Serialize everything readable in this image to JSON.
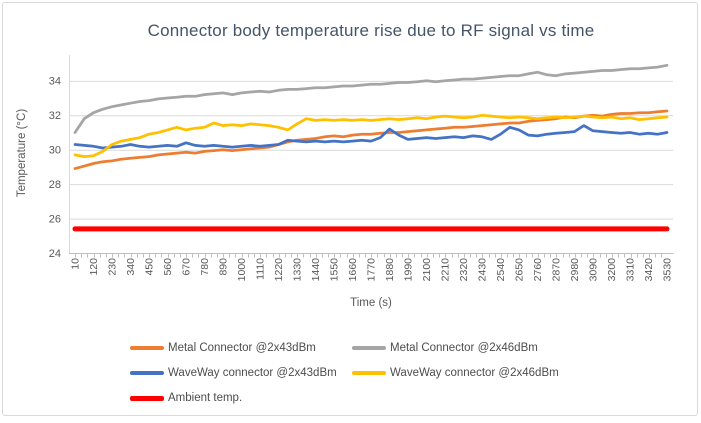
{
  "chart_data": {
    "type": "line",
    "title": "Connector body temperature rise due to RF signal vs time",
    "xlabel": "Time (s)",
    "ylabel": "Temperature (°C)",
    "xlim": [
      10,
      3530
    ],
    "ylim": [
      24,
      35.5
    ],
    "y_ticks": [
      24,
      26,
      28,
      30,
      32,
      34
    ],
    "x_tick_labels": [
      10,
      120,
      230,
      340,
      450,
      560,
      670,
      780,
      890,
      1000,
      1110,
      1220,
      1330,
      1440,
      1550,
      1660,
      1770,
      1880,
      1990,
      2100,
      2210,
      2320,
      2430,
      2540,
      2650,
      2760,
      2870,
      2980,
      3090,
      3200,
      3310,
      3420,
      3530
    ],
    "x_minor_tick_step": 36.7,
    "grid": true,
    "legend_position": "bottom",
    "colors": {
      "gridline": "#D9D9D9",
      "axis": "#BFBFBF",
      "tick_text": "#595959",
      "title_text": "#44546A"
    },
    "x": [
      10,
      65,
      120,
      175,
      230,
      285,
      340,
      395,
      450,
      505,
      560,
      615,
      670,
      725,
      780,
      835,
      890,
      945,
      1000,
      1055,
      1110,
      1165,
      1220,
      1275,
      1330,
      1385,
      1440,
      1495,
      1550,
      1605,
      1660,
      1715,
      1770,
      1825,
      1880,
      1935,
      1990,
      2045,
      2100,
      2155,
      2210,
      2265,
      2320,
      2375,
      2430,
      2485,
      2540,
      2595,
      2650,
      2705,
      2760,
      2815,
      2870,
      2925,
      2980,
      3035,
      3090,
      3145,
      3200,
      3255,
      3310,
      3365,
      3420,
      3475,
      3530
    ],
    "series": [
      {
        "name": "Metal Connector @2x43dBm",
        "color": "#ED7D31",
        "line_width": 2.75,
        "values": [
          28.9,
          29.05,
          29.2,
          29.3,
          29.35,
          29.45,
          29.5,
          29.55,
          29.6,
          29.7,
          29.75,
          29.8,
          29.85,
          29.8,
          29.9,
          29.95,
          30.0,
          29.95,
          30.0,
          30.05,
          30.1,
          30.15,
          30.3,
          30.45,
          30.55,
          30.6,
          30.65,
          30.75,
          30.8,
          30.75,
          30.85,
          30.9,
          30.9,
          30.95,
          31.0,
          31.0,
          31.05,
          31.1,
          31.15,
          31.2,
          31.25,
          31.3,
          31.3,
          31.35,
          31.4,
          31.45,
          31.5,
          31.55,
          31.55,
          31.65,
          31.7,
          31.75,
          31.8,
          31.9,
          31.85,
          31.95,
          32.0,
          31.95,
          32.05,
          32.1,
          32.1,
          32.15,
          32.15,
          32.2,
          32.25
        ]
      },
      {
        "name": "Metal Connector @2x46dBm",
        "color": "#A5A5A5",
        "line_width": 2.75,
        "values": [
          31.0,
          31.8,
          32.15,
          32.35,
          32.5,
          32.6,
          32.7,
          32.8,
          32.85,
          32.95,
          33.0,
          33.05,
          33.1,
          33.1,
          33.2,
          33.25,
          33.3,
          33.2,
          33.3,
          33.35,
          33.4,
          33.35,
          33.45,
          33.5,
          33.5,
          33.55,
          33.6,
          33.6,
          33.65,
          33.7,
          33.7,
          33.75,
          33.8,
          33.8,
          33.85,
          33.9,
          33.9,
          33.95,
          34.0,
          33.95,
          34.0,
          34.05,
          34.1,
          34.1,
          34.15,
          34.2,
          34.25,
          34.3,
          34.3,
          34.4,
          34.5,
          34.35,
          34.3,
          34.4,
          34.45,
          34.5,
          34.55,
          34.6,
          34.6,
          34.65,
          34.7,
          34.7,
          34.75,
          34.8,
          34.9
        ]
      },
      {
        "name": "WaveWay connector @2x43dBm",
        "color": "#4472C4",
        "line_width": 2.75,
        "values": [
          30.3,
          30.25,
          30.2,
          30.1,
          30.15,
          30.2,
          30.3,
          30.2,
          30.15,
          30.2,
          30.25,
          30.2,
          30.4,
          30.25,
          30.2,
          30.25,
          30.2,
          30.15,
          30.2,
          30.25,
          30.2,
          30.25,
          30.3,
          30.55,
          30.5,
          30.45,
          30.5,
          30.45,
          30.5,
          30.45,
          30.5,
          30.55,
          30.5,
          30.7,
          31.2,
          30.85,
          30.6,
          30.65,
          30.7,
          30.65,
          30.7,
          30.75,
          30.7,
          30.8,
          30.75,
          30.6,
          30.9,
          31.3,
          31.15,
          30.85,
          30.8,
          30.9,
          30.95,
          31.0,
          31.05,
          31.4,
          31.1,
          31.05,
          31.0,
          30.95,
          31.0,
          30.9,
          30.95,
          30.9,
          31.0
        ]
      },
      {
        "name": "WaveWay connector @2x46dBm",
        "color": "#FFC000",
        "line_width": 2.75,
        "values": [
          29.7,
          29.6,
          29.65,
          29.9,
          30.3,
          30.5,
          30.6,
          30.7,
          30.9,
          31.0,
          31.15,
          31.3,
          31.15,
          31.25,
          31.3,
          31.55,
          31.4,
          31.45,
          31.4,
          31.5,
          31.45,
          31.4,
          31.3,
          31.15,
          31.5,
          31.8,
          31.7,
          31.75,
          31.7,
          31.75,
          31.7,
          31.75,
          31.7,
          31.75,
          31.8,
          31.75,
          31.8,
          31.85,
          31.8,
          31.9,
          31.95,
          31.9,
          31.85,
          31.9,
          32.0,
          31.95,
          31.9,
          31.85,
          31.9,
          31.85,
          31.8,
          31.85,
          31.9,
          31.85,
          31.9,
          31.95,
          31.9,
          31.85,
          31.9,
          31.8,
          31.85,
          31.75,
          31.8,
          31.85,
          31.9
        ]
      },
      {
        "name": "Ambient temp.",
        "color": "#FF0000",
        "line_width": 5,
        "x": [
          10,
          3530
        ],
        "values": [
          25.4,
          25.4
        ]
      }
    ]
  }
}
